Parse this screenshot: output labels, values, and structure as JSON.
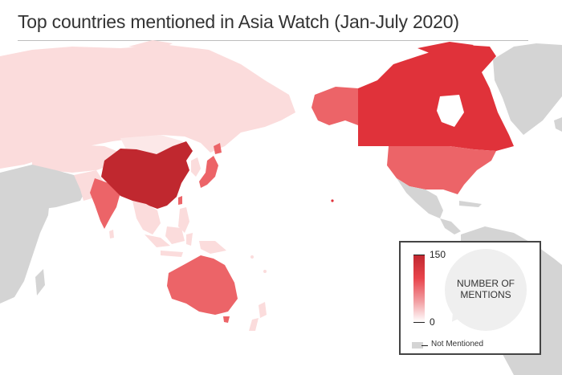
{
  "title": "Top countries mentioned in Asia Watch (Jan-July 2020)",
  "legend": {
    "max_label": "150",
    "min_label": "0",
    "bubble_line1": "NUMBER OF",
    "bubble_line2": "MENTIONS",
    "not_mentioned_label": "Not Mentioned"
  },
  "colors": {
    "highest": "#c0282f",
    "high": "#e0323a",
    "medium": "#ec6468",
    "low": "#fbdcdc",
    "not_mentioned": "#d4d4d4",
    "ocean": "#ffffff"
  },
  "countries": [
    {
      "name": "China",
      "level": "highest"
    },
    {
      "name": "United States",
      "level": "medium"
    },
    {
      "name": "Canada",
      "level": "high"
    },
    {
      "name": "Australia",
      "level": "medium"
    },
    {
      "name": "India",
      "level": "medium"
    },
    {
      "name": "Japan",
      "level": "medium"
    },
    {
      "name": "Russia",
      "level": "low"
    }
  ]
}
